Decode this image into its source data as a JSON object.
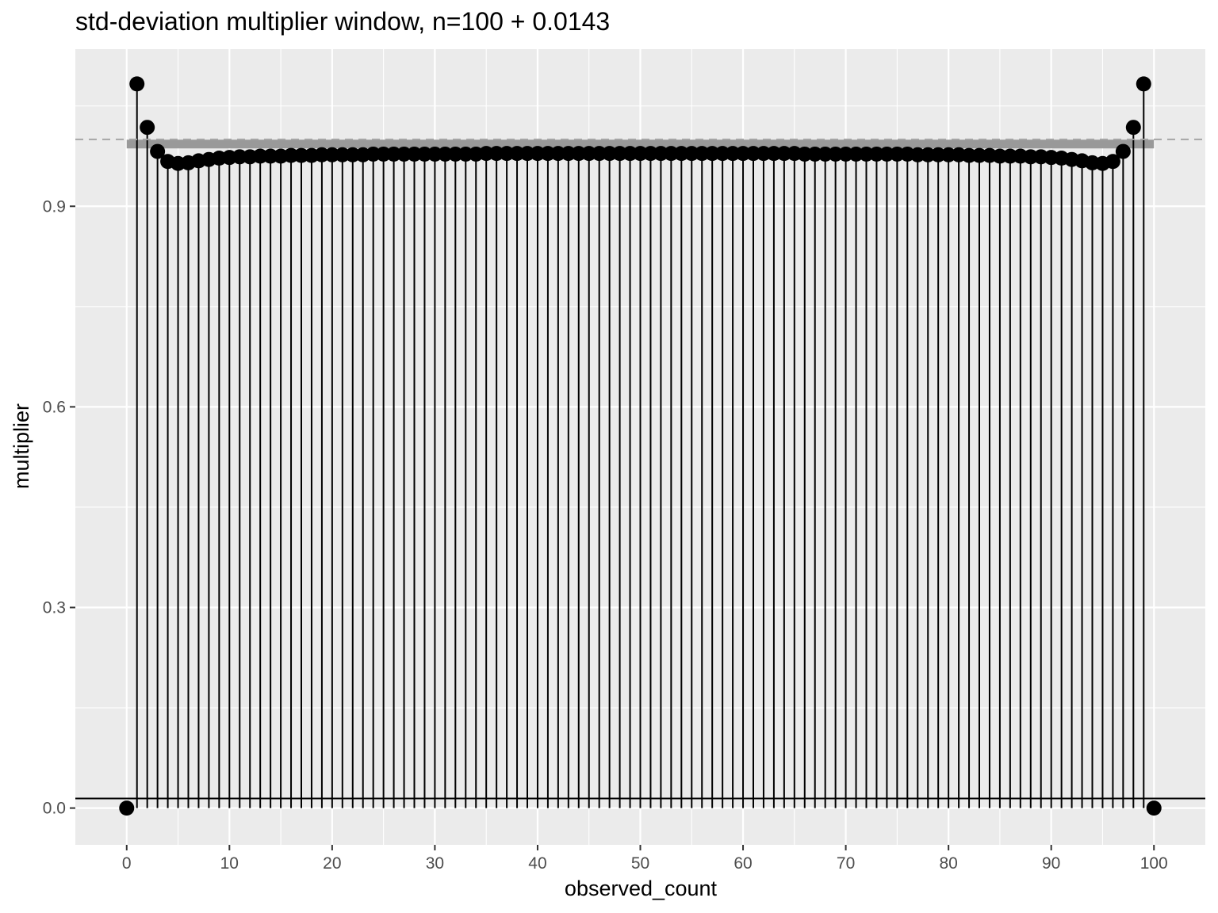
{
  "chart_data": {
    "type": "scatter",
    "subtype": "lollipop",
    "title": "std-deviation multiplier window, n=100 + 0.0143",
    "xlabel": "observed_count",
    "ylabel": "multiplier",
    "xlim": [
      -5,
      105
    ],
    "ylim": [
      -0.055,
      1.135
    ],
    "x_ticks": [
      0,
      10,
      20,
      30,
      40,
      50,
      60,
      70,
      80,
      90,
      100
    ],
    "x_tick_labels": [
      "0",
      "10",
      "20",
      "30",
      "40",
      "50",
      "60",
      "70",
      "80",
      "90",
      "100"
    ],
    "y_ticks": [
      0.0,
      0.3,
      0.6,
      0.9
    ],
    "y_tick_labels": [
      "0.0",
      "0.3",
      "0.6",
      "0.9"
    ],
    "grid": true,
    "reference_lines": {
      "horizontal_solid": 0.0143,
      "horizontal_dashed": 1.0
    },
    "band": {
      "x_start": 0,
      "x_end": 100,
      "y": 0.993,
      "color": "#999999"
    },
    "x": [
      0,
      1,
      2,
      3,
      4,
      5,
      6,
      7,
      8,
      9,
      10,
      11,
      12,
      13,
      14,
      15,
      16,
      17,
      18,
      19,
      20,
      21,
      22,
      23,
      24,
      25,
      26,
      27,
      28,
      29,
      30,
      31,
      32,
      33,
      34,
      35,
      36,
      37,
      38,
      39,
      40,
      41,
      42,
      43,
      44,
      45,
      46,
      47,
      48,
      49,
      50,
      51,
      52,
      53,
      54,
      55,
      56,
      57,
      58,
      59,
      60,
      61,
      62,
      63,
      64,
      65,
      66,
      67,
      68,
      69,
      70,
      71,
      72,
      73,
      74,
      75,
      76,
      77,
      78,
      79,
      80,
      81,
      82,
      83,
      84,
      85,
      86,
      87,
      88,
      89,
      90,
      91,
      92,
      93,
      94,
      95,
      96,
      97,
      98,
      99,
      100
    ],
    "y": [
      0.0,
      1.083,
      1.018,
      0.982,
      0.967,
      0.964,
      0.965,
      0.968,
      0.97,
      0.972,
      0.973,
      0.974,
      0.974,
      0.975,
      0.975,
      0.975,
      0.976,
      0.976,
      0.976,
      0.977,
      0.977,
      0.977,
      0.977,
      0.977,
      0.978,
      0.978,
      0.978,
      0.978,
      0.978,
      0.978,
      0.978,
      0.978,
      0.978,
      0.978,
      0.978,
      0.979,
      0.979,
      0.979,
      0.979,
      0.979,
      0.979,
      0.979,
      0.979,
      0.979,
      0.979,
      0.979,
      0.979,
      0.979,
      0.979,
      0.979,
      0.979,
      0.979,
      0.979,
      0.979,
      0.979,
      0.979,
      0.979,
      0.979,
      0.979,
      0.979,
      0.979,
      0.979,
      0.979,
      0.979,
      0.979,
      0.979,
      0.978,
      0.978,
      0.978,
      0.978,
      0.978,
      0.978,
      0.978,
      0.978,
      0.978,
      0.978,
      0.978,
      0.977,
      0.977,
      0.977,
      0.977,
      0.977,
      0.976,
      0.976,
      0.976,
      0.975,
      0.975,
      0.975,
      0.974,
      0.974,
      0.973,
      0.972,
      0.97,
      0.968,
      0.965,
      0.964,
      0.967,
      0.982,
      1.018,
      1.083,
      0.0
    ],
    "colors": {
      "panel": "#ebebeb",
      "grid": "#ffffff",
      "stem": "#000000",
      "point": "#000000",
      "dashed": "#a6a6a6",
      "tick_text": "#4d4d4d"
    }
  }
}
